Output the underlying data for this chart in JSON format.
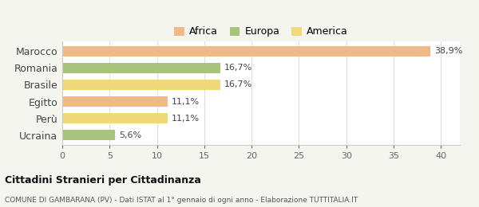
{
  "categories": [
    "Marocco",
    "Romania",
    "Brasile",
    "Egitto",
    "Perù",
    "Ucraina"
  ],
  "values": [
    38.9,
    16.7,
    16.7,
    11.1,
    11.1,
    5.6
  ],
  "labels": [
    "38,9%",
    "16,7%",
    "16,7%",
    "11,1%",
    "11,1%",
    "5,6%"
  ],
  "colors": [
    "#f0b988",
    "#a8c47a",
    "#f0d97a",
    "#f0b988",
    "#f0d97a",
    "#a8c47a"
  ],
  "legend": [
    {
      "label": "Africa",
      "color": "#f0b988"
    },
    {
      "label": "Europa",
      "color": "#a8c47a"
    },
    {
      "label": "America",
      "color": "#f0d97a"
    }
  ],
  "xlim": [
    0,
    42
  ],
  "xticks": [
    0,
    5,
    10,
    15,
    20,
    25,
    30,
    35,
    40
  ],
  "title": "Cittadini Stranieri per Cittadinanza",
  "subtitle": "COMUNE DI GAMBARANA (PV) - Dati ISTAT al 1° gennaio di ogni anno - Elaborazione TUTTITALIA.IT",
  "bg_color": "#f5f5f0",
  "bar_bg": "#ffffff"
}
